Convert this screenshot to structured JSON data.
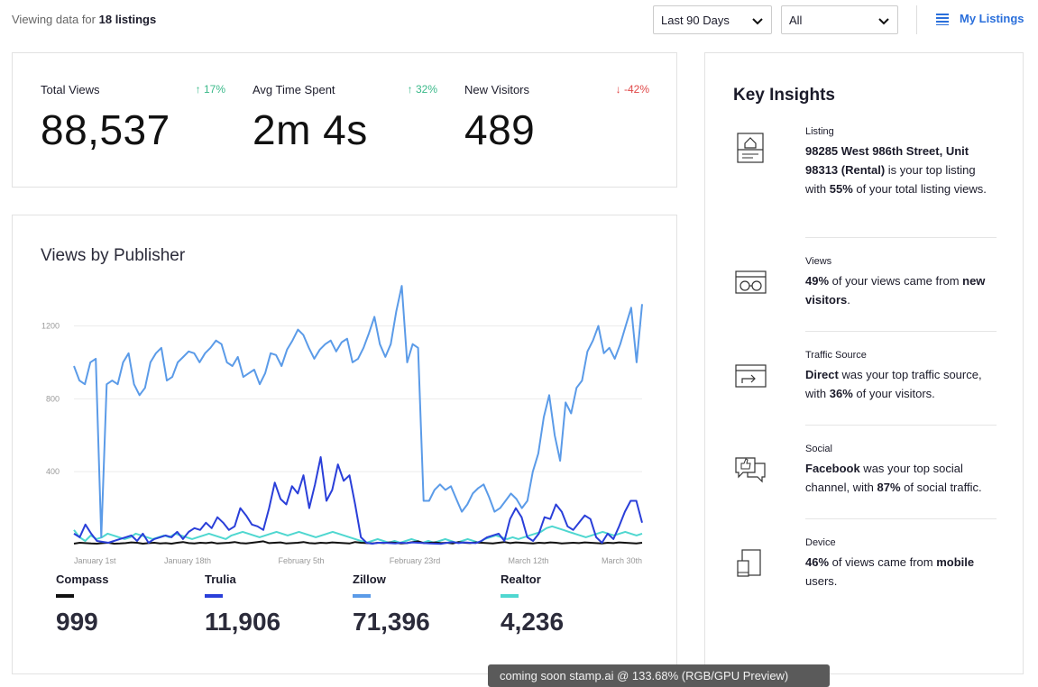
{
  "header": {
    "viewing_prefix": "Viewing data for",
    "viewing_count": "18 listings",
    "range_select": "Last 90 Days",
    "filter_select": "All",
    "my_listings": "My Listings"
  },
  "stats": [
    {
      "label": "Total Views",
      "change": "↑ 17%",
      "value": "88,537"
    },
    {
      "label": "Avg Time Spent",
      "change": "↑ 32%",
      "value": "2m 4s"
    },
    {
      "label": "New Visitors",
      "change": "↓ -42%",
      "value": "489"
    }
  ],
  "colors": {
    "up": "#3bb98a",
    "down": "#e04848",
    "accent": "#2a6fdb"
  },
  "chart_data": {
    "type": "line",
    "title": "Views by Publisher",
    "ylim": [
      0,
      1450
    ],
    "y_ticks": [
      400,
      800,
      1200
    ],
    "x_tick_labels": [
      "January 1st",
      "January 18th",
      "February 5th",
      "February 23rd",
      "March 12th",
      "March 30th"
    ],
    "grid": true,
    "series": [
      {
        "name": "Compass",
        "color": "#111111",
        "total": "999",
        "values": [
          5,
          10,
          8,
          6,
          5,
          8,
          10,
          5,
          6,
          8,
          12,
          10,
          5,
          8,
          10,
          6,
          8,
          5,
          10,
          14,
          8,
          6,
          10,
          8,
          12,
          6,
          8,
          10,
          14,
          8,
          6,
          10,
          14,
          18,
          8,
          10,
          12,
          6,
          8,
          10,
          14,
          8,
          6,
          10,
          8,
          12,
          10,
          8,
          6,
          14,
          10,
          8,
          6,
          10,
          8,
          12,
          10,
          6,
          8,
          14,
          18,
          8,
          10,
          12,
          8,
          10,
          6,
          14,
          10,
          8,
          12,
          10,
          8,
          6,
          10,
          14,
          8,
          12,
          10,
          8,
          6,
          10,
          8,
          12,
          10,
          6,
          8,
          10,
          8,
          12,
          10,
          8,
          6,
          10,
          8,
          12,
          10,
          8,
          6,
          10
        ]
      },
      {
        "name": "Trulia",
        "color": "#2a3fd9",
        "total": "11,906",
        "values": [
          60,
          40,
          110,
          60,
          20,
          15,
          10,
          20,
          30,
          40,
          50,
          20,
          60,
          10,
          30,
          40,
          50,
          40,
          70,
          30,
          70,
          90,
          80,
          120,
          90,
          150,
          120,
          80,
          100,
          200,
          160,
          110,
          100,
          80,
          200,
          340,
          250,
          220,
          320,
          280,
          380,
          200,
          330,
          480,
          240,
          300,
          440,
          350,
          380,
          220,
          40,
          10,
          5,
          10,
          10,
          8,
          6,
          10,
          8,
          12,
          10,
          8,
          6,
          5,
          4,
          10,
          14,
          8,
          12,
          10,
          8,
          20,
          40,
          50,
          60,
          20,
          140,
          200,
          150,
          40,
          20,
          60,
          150,
          140,
          220,
          180,
          100,
          80,
          120,
          160,
          140,
          40,
          10,
          60,
          30,
          100,
          180,
          240,
          240,
          120
        ]
      },
      {
        "name": "Zillow",
        "color": "#5b9be8",
        "total": "71,396",
        "values": [
          980,
          900,
          880,
          1000,
          1020,
          40,
          880,
          900,
          880,
          1000,
          1050,
          880,
          820,
          860,
          1000,
          1050,
          1080,
          900,
          920,
          1000,
          1030,
          1060,
          1050,
          1000,
          1050,
          1080,
          1120,
          1100,
          1000,
          980,
          1030,
          920,
          940,
          960,
          880,
          940,
          1050,
          1040,
          980,
          1070,
          1120,
          1180,
          1150,
          1080,
          1020,
          1070,
          1100,
          1120,
          1060,
          1110,
          1130,
          1000,
          1020,
          1080,
          1160,
          1250,
          1100,
          1030,
          1100,
          1280,
          1420,
          1000,
          1100,
          1080,
          240,
          240,
          300,
          330,
          300,
          320,
          250,
          180,
          220,
          280,
          310,
          330,
          260,
          180,
          200,
          240,
          280,
          250,
          200,
          240,
          400,
          500,
          700,
          820,
          600,
          460,
          780,
          720,
          860,
          900,
          1060,
          1120,
          1200,
          1050,
          1080,
          1020,
          1100,
          1200,
          1300,
          1000,
          1320
        ]
      },
      {
        "name": "Realtor",
        "color": "#4fd7d0",
        "total": "4,236",
        "values": [
          80,
          40,
          20,
          50,
          30,
          40,
          60,
          50,
          40,
          30,
          40,
          60,
          50,
          40,
          30,
          40,
          50,
          40,
          60,
          50,
          40,
          30,
          40,
          50,
          60,
          50,
          40,
          30,
          50,
          60,
          70,
          60,
          50,
          40,
          50,
          60,
          70,
          60,
          50,
          60,
          70,
          60,
          50,
          40,
          50,
          60,
          70,
          60,
          50,
          40,
          30,
          20,
          10,
          20,
          30,
          20,
          10,
          20,
          10,
          20,
          30,
          20,
          10,
          20,
          10,
          20,
          30,
          20,
          10,
          20,
          30,
          20,
          10,
          30,
          40,
          50,
          40,
          30,
          40,
          30,
          40,
          50,
          60,
          70,
          90,
          100,
          90,
          80,
          70,
          60,
          50,
          40,
          50,
          60,
          70,
          60,
          50,
          60,
          70,
          60,
          50,
          60
        ]
      }
    ]
  },
  "insights": {
    "title": "Key Insights",
    "items": [
      {
        "category": "Listing",
        "icon": "house-listing-icon",
        "parts": [
          [
            "98285 West 986th Street, Unit 98313 (Rental)",
            true
          ],
          [
            " is your top listing with ",
            false
          ],
          [
            "55%",
            true
          ],
          [
            " of your total listing views.",
            false
          ]
        ]
      },
      {
        "category": "Views",
        "icon": "glasses-icon",
        "parts": [
          [
            "49%",
            true
          ],
          [
            " of your views came from ",
            false
          ],
          [
            "new visitors",
            true
          ],
          [
            ".",
            false
          ]
        ]
      },
      {
        "category": "Traffic Source",
        "icon": "traffic-arrow-icon",
        "parts": [
          [
            "Direct",
            true
          ],
          [
            " was your top traffic source, with ",
            false
          ],
          [
            "36%",
            true
          ],
          [
            " of your visitors.",
            false
          ]
        ]
      },
      {
        "category": "Social",
        "icon": "thumbs-up-chat-icon",
        "parts": [
          [
            "Facebook",
            true
          ],
          [
            " was your top social channel, with ",
            false
          ],
          [
            "87%",
            true
          ],
          [
            " of social traffic.",
            false
          ]
        ]
      },
      {
        "category": "Device",
        "icon": "devices-icon",
        "parts": [
          [
            "46%",
            true
          ],
          [
            " of views came from ",
            false
          ],
          [
            "mobile",
            true
          ],
          [
            " users.",
            false
          ]
        ]
      }
    ]
  },
  "toast": "coming soon stamp.ai @ 133.68% (RGB/GPU Preview)"
}
